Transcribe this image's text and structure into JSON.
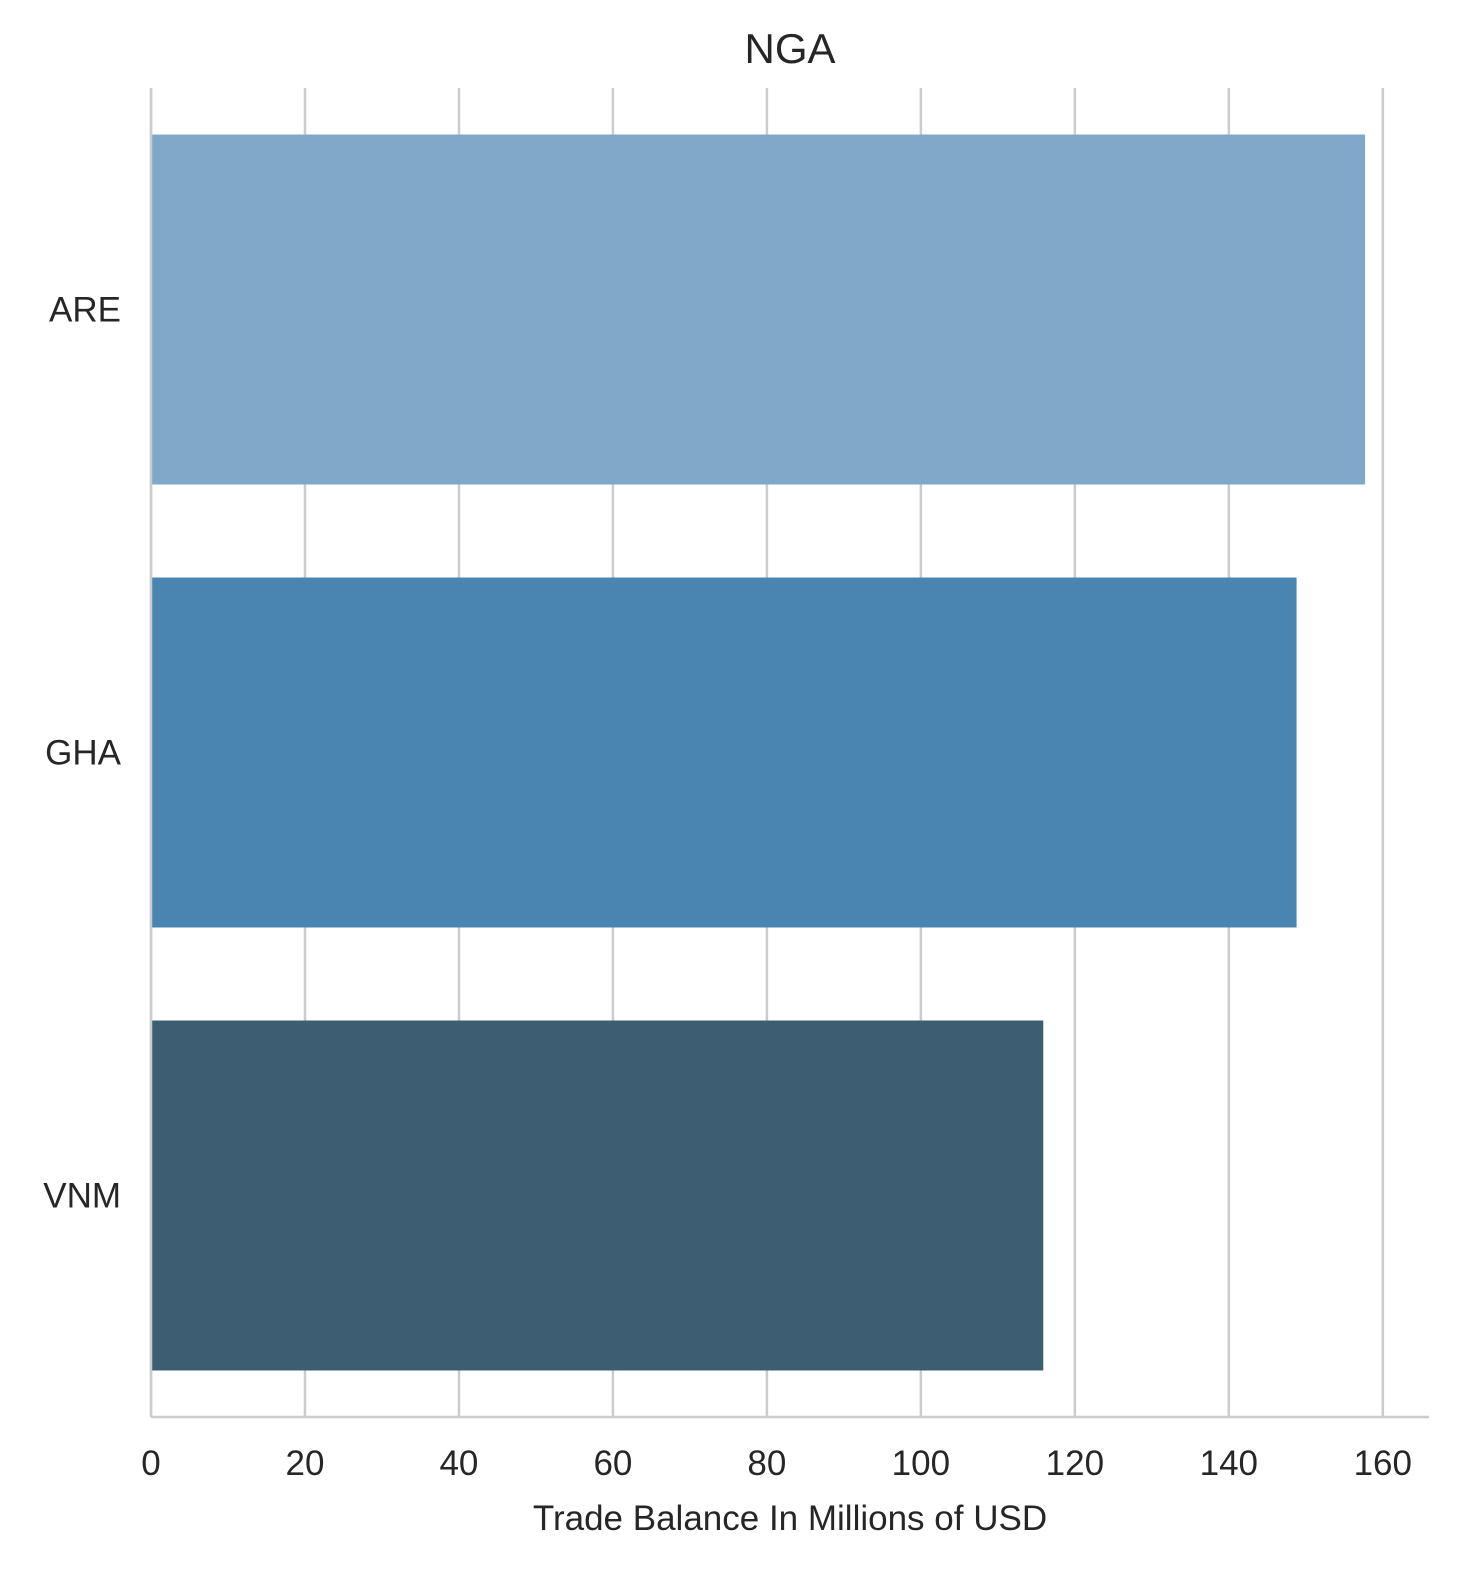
{
  "chart_data": {
    "type": "bar",
    "orientation": "horizontal",
    "title": "NGA",
    "xlabel": "Trade Balance In Millions of USD",
    "ylabel": "",
    "categories": [
      "ARE",
      "GHA",
      "VNM"
    ],
    "values": [
      157.7,
      148.8,
      115.9
    ],
    "bar_colors": [
      "#7fa8c9",
      "#4a84b0",
      "#3d5d73"
    ],
    "xlim": [
      0,
      166
    ],
    "xticks": [
      0,
      20,
      40,
      60,
      80,
      100,
      120,
      140,
      160
    ],
    "xtick_labels": [
      "0",
      "20",
      "40",
      "60",
      "80",
      "100",
      "120",
      "140",
      "160"
    ],
    "grid": "vertical",
    "grid_color": "#cccccc",
    "spine_color": "#cccccc",
    "legend": "none"
  }
}
